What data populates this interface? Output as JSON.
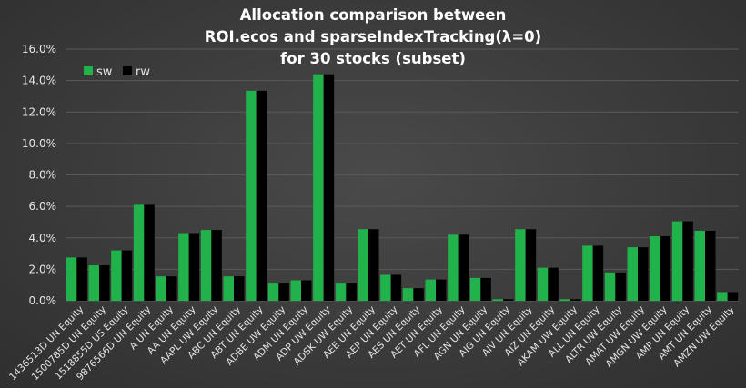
{
  "chart_data": {
    "type": "bar",
    "title": [
      "Allocation comparison between",
      "ROI.ecos and sparseIndexTracking(λ=0)",
      "for 30 stocks (subset)"
    ],
    "xlabel": "",
    "ylabel": "",
    "ylim": [
      0,
      16
    ],
    "y_ticks": [
      0,
      2,
      4,
      6,
      8,
      10,
      12,
      14,
      16
    ],
    "y_tick_labels": [
      "0.0%",
      "2.0%",
      "4.0%",
      "6.0%",
      "8.0%",
      "10.0%",
      "12.0%",
      "14.0%",
      "16.0%"
    ],
    "grid": true,
    "legend_position": "top-left",
    "categories": [
      "1436513D UN Equity",
      "1500785D UN Equity",
      "1518855D US Equity",
      "9876566D UN Equity",
      "A UN Equity",
      "AA UN Equity",
      "AAPL UW Equity",
      "ABC UN Equity",
      "ABT UN Equity",
      "ADBE UW Equity",
      "ADM UN Equity",
      "ADP UW Equity",
      "ADSK UW Equity",
      "AEE UN Equity",
      "AEP UN Equity",
      "AES UN Equity",
      "AET UN Equity",
      "AFL UN Equity",
      "AGN UN Equity",
      "AIG UN Equity",
      "AIV UN Equity",
      "AIZ UN Equity",
      "AKAM UW Equity",
      "ALL UN Equity",
      "ALTR UW Equity",
      "AMAT UW Equity",
      "AMGN UW Equity",
      "AMP UN Equity",
      "AMT UN Equity",
      "AMZN UW Equity"
    ],
    "series": [
      {
        "name": "sw",
        "color": "#21b24b",
        "values": [
          2.75,
          2.25,
          3.2,
          6.1,
          1.55,
          4.3,
          4.5,
          1.55,
          13.35,
          1.15,
          1.3,
          14.4,
          1.15,
          4.55,
          1.65,
          0.8,
          1.35,
          4.2,
          1.45,
          0.1,
          4.55,
          2.1,
          0.1,
          3.5,
          1.8,
          3.4,
          4.1,
          5.05,
          4.45,
          0.55
        ]
      },
      {
        "name": "rw",
        "color": "#000000",
        "values": [
          2.75,
          2.25,
          3.2,
          6.1,
          1.55,
          4.3,
          4.5,
          1.55,
          13.35,
          1.15,
          1.3,
          14.4,
          1.15,
          4.55,
          1.65,
          0.8,
          1.35,
          4.2,
          1.45,
          0.1,
          4.55,
          2.1,
          0.1,
          3.5,
          1.8,
          3.4,
          4.1,
          5.05,
          4.45,
          0.55
        ]
      }
    ]
  }
}
